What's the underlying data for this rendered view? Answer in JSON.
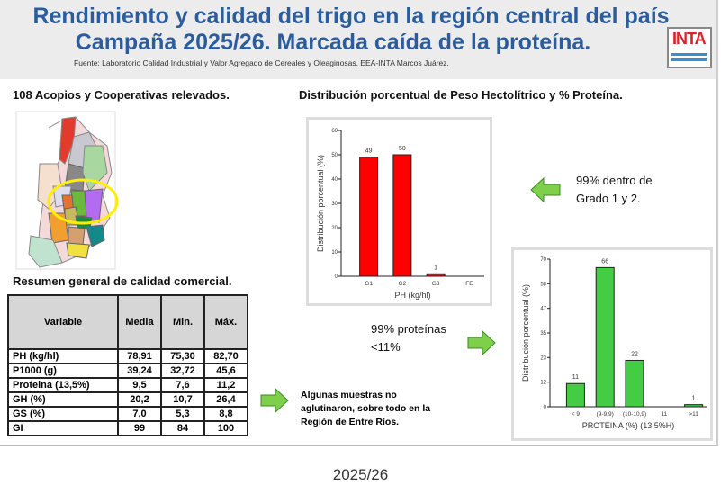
{
  "header": {
    "title_line1": "Rendimiento y calidad del trigo en la región central del país",
    "title_line2": "Campaña 2025/26. Marcada caída de la proteína.",
    "source": "Fuente: Laboratorio Calidad Industrial y Valor Agregado de Cereales y Oleaginosas. EEA-INTA Marcos Juárez.",
    "logo": "INTA"
  },
  "map_heading": "108 Acopios y Cooperativas relevados.",
  "charts_heading": "Distribución porcentual de Peso Hectolítrico y % Proteína.",
  "table_heading": "Resumen general de calidad comercial.",
  "table": {
    "headers": [
      "Variable",
      "Media",
      "Min.",
      "Máx."
    ],
    "rows": [
      [
        "PH (kg/hl)",
        "78,91",
        "75,30",
        "82,70"
      ],
      [
        "P1000 (g)",
        "39,24",
        "32,72",
        "45,6"
      ],
      [
        "Proteina (13,5%)",
        "9,5",
        "7,6",
        "11,2"
      ],
      [
        "GH (%)",
        "20,2",
        "10,7",
        "26,4"
      ],
      [
        "GS (%)",
        "7,0",
        "5,3",
        "8,8"
      ],
      [
        "GI",
        "99",
        "84",
        "100"
      ]
    ]
  },
  "notes": {
    "grade": "99% dentro de Grado 1 y 2.",
    "protein": "99% proteínas <11%",
    "gluten": "Algunas muestras no aglutinaron, sobre todo en la Región de Entre Ríos."
  },
  "caption": "2025/26",
  "chart_data": [
    {
      "type": "bar",
      "title": "",
      "categories": [
        "G1",
        "G2",
        "G3",
        "FE"
      ],
      "values": [
        49,
        50,
        1,
        0
      ],
      "labels": [
        "49",
        "50",
        "1",
        ""
      ],
      "xlabel": "PH (kg/hl)",
      "ylabel": "Distribución porcentual  (%)",
      "ylim": [
        0,
        60
      ],
      "yticks": [
        "0",
        "10",
        "20",
        "30",
        "40",
        "50",
        "60"
      ],
      "color": "#ff0000"
    },
    {
      "type": "bar",
      "title": "",
      "categories": [
        "< 9",
        "(9-9,9)",
        "(10-10,9)",
        "11",
        ">11"
      ],
      "values": [
        11,
        66,
        22,
        0,
        1
      ],
      "labels": [
        "11",
        "66",
        "22",
        "",
        "1"
      ],
      "xlabel": "PROTEINA (%) (13,5%H)",
      "ylabel": "Distribución porcentual  (%)",
      "ylim": [
        0,
        70
      ],
      "yticks": [
        "0",
        "12",
        "23",
        "35",
        "47",
        "58",
        "70"
      ],
      "color": "#44cc44"
    }
  ]
}
